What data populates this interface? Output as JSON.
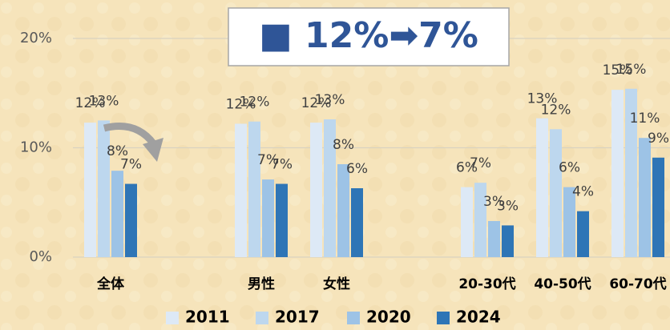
{
  "chart_data": {
    "type": "bar",
    "title": "■ 12%➡7%",
    "categories": [
      "全体",
      null,
      "男性",
      "女性",
      null,
      "20-30代",
      "40-50代",
      "60-70代"
    ],
    "series": [
      {
        "name": "2011",
        "color": "#dde9f6",
        "values": [
          12.3,
          null,
          12.2,
          12.3,
          null,
          6.4,
          12.7,
          15.3
        ],
        "value_labels": [
          "12%",
          null,
          "12%",
          "12%",
          null,
          "6%",
          "13%",
          "15%"
        ]
      },
      {
        "name": "2017",
        "color": "#bdd7ee",
        "values": [
          12.5,
          null,
          12.4,
          12.6,
          null,
          6.8,
          11.7,
          15.4
        ],
        "value_labels": [
          "13%",
          null,
          "12%",
          "13%",
          null,
          "7%",
          "12%",
          "15%"
        ]
      },
      {
        "name": "2020",
        "color": "#9dc3e6",
        "values": [
          7.9,
          null,
          7.1,
          8.5,
          null,
          3.3,
          6.4,
          10.9
        ],
        "value_labels": [
          "8%",
          null,
          "7%",
          "8%",
          null,
          "3%",
          "6%",
          "11%"
        ]
      },
      {
        "name": "2024",
        "color": "#2e75b6",
        "values": [
          6.7,
          null,
          6.7,
          6.3,
          null,
          2.9,
          4.2,
          9.1
        ],
        "value_labels": [
          "7%",
          null,
          "7%",
          "6%",
          null,
          "3%",
          "4%",
          "9%"
        ]
      }
    ],
    "ylim": [
      0,
      20
    ],
    "yticks": [
      {
        "value": 0,
        "label": "0%"
      },
      {
        "value": 10,
        "label": "10%"
      },
      {
        "value": 20,
        "label": "20%"
      }
    ],
    "grid": true,
    "legend": "bottom"
  }
}
